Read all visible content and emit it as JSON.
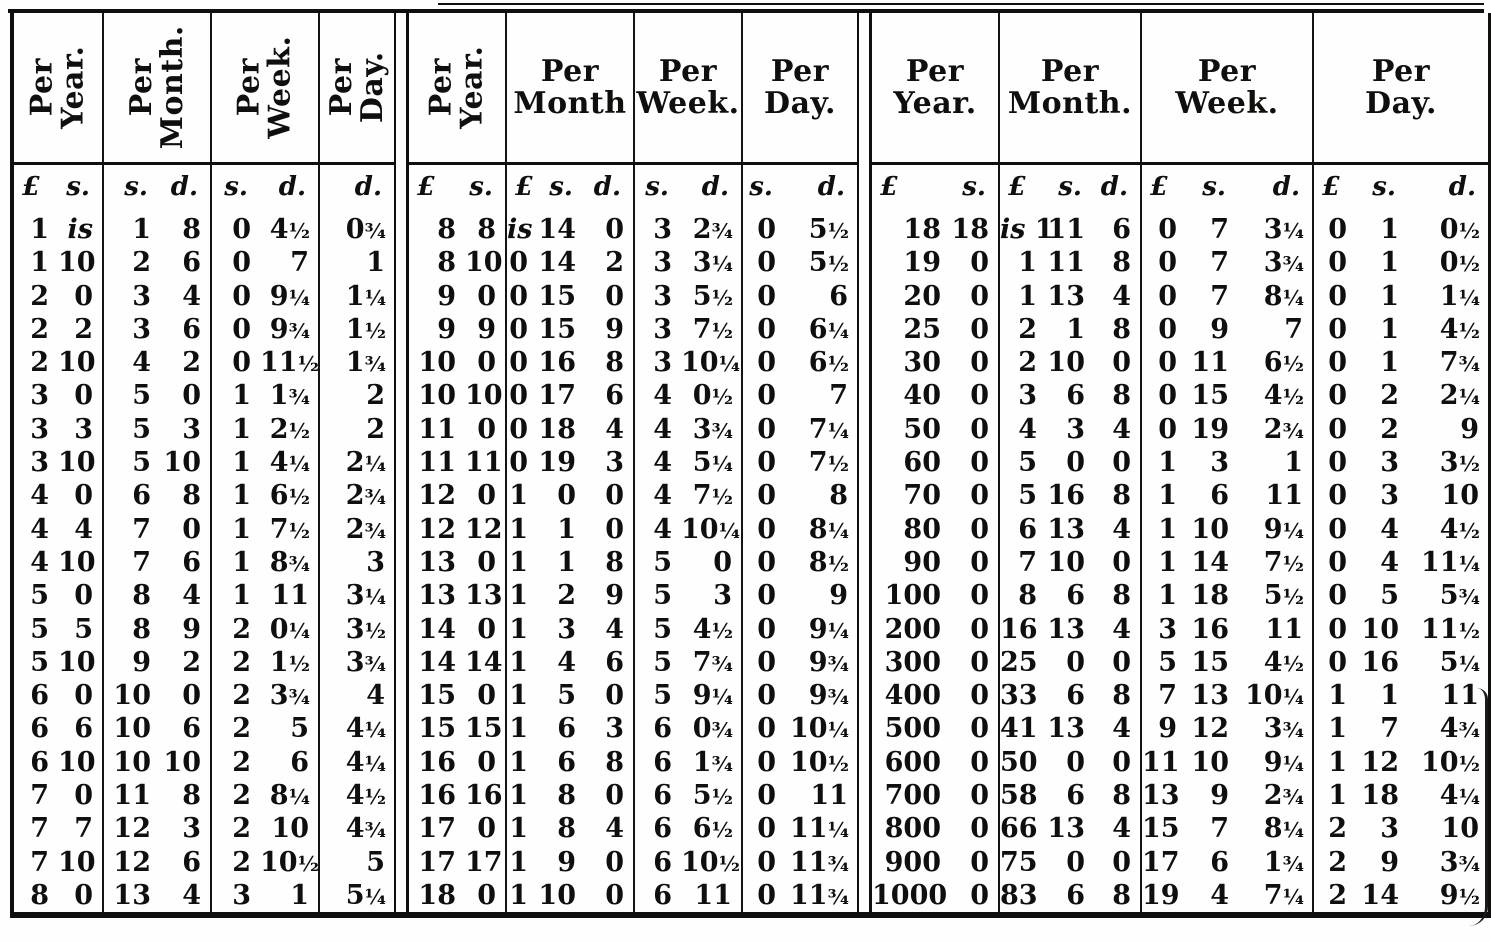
{
  "document_type": "scanned ready-reckoner wage conversion table",
  "colors": {
    "ink": "#100f0d",
    "paper": "#fefefe"
  },
  "first_row_word": "is",
  "table": {
    "sections": [
      {
        "name": "section-pounds-1-to-8",
        "groups": [
          {
            "label_lines": [
              "Per",
              "Year."
            ],
            "vertical": true,
            "units": [
              "£",
              "s."
            ]
          },
          {
            "label_lines": [
              "Per",
              "Month."
            ],
            "vertical": true,
            "units": [
              "s.",
              "d."
            ]
          },
          {
            "label_lines": [
              "Per",
              "Week."
            ],
            "vertical": true,
            "units": [
              "s.",
              "d."
            ]
          },
          {
            "label_lines": [
              "Per",
              "Day."
            ],
            "vertical": true,
            "units": [
              "d."
            ]
          }
        ],
        "rows": [
          [
            "1",
            "is",
            "1",
            "8",
            "0",
            "4½",
            "0¾"
          ],
          [
            "1",
            "10",
            "2",
            "6",
            "0",
            "7",
            "1"
          ],
          [
            "2",
            "0",
            "3",
            "4",
            "0",
            "9¼",
            "1¼"
          ],
          [
            "2",
            "2",
            "3",
            "6",
            "0",
            "9¾",
            "1½"
          ],
          [
            "2",
            "10",
            "4",
            "2",
            "0",
            "11½",
            "1¾"
          ],
          [
            "3",
            "0",
            "5",
            "0",
            "1",
            "1¾",
            "2"
          ],
          [
            "3",
            "3",
            "5",
            "3",
            "1",
            "2½",
            "2"
          ],
          [
            "3",
            "10",
            "5",
            "10",
            "1",
            "4¼",
            "2¼"
          ],
          [
            "4",
            "0",
            "6",
            "8",
            "1",
            "6½",
            "2¾"
          ],
          [
            "4",
            "4",
            "7",
            "0",
            "1",
            "7½",
            "2¾"
          ],
          [
            "4",
            "10",
            "7",
            "6",
            "1",
            "8¾",
            "3"
          ],
          [
            "5",
            "0",
            "8",
            "4",
            "1",
            "11",
            "3¼"
          ],
          [
            "5",
            "5",
            "8",
            "9",
            "2",
            "0¼",
            "3½"
          ],
          [
            "5",
            "10",
            "9",
            "2",
            "2",
            "1½",
            "3¾"
          ],
          [
            "6",
            "0",
            "10",
            "0",
            "2",
            "3¾",
            "4"
          ],
          [
            "6",
            "6",
            "10",
            "6",
            "2",
            "5",
            "4¼"
          ],
          [
            "6",
            "10",
            "10",
            "10",
            "2",
            "6",
            "4¼"
          ],
          [
            "7",
            "0",
            "11",
            "8",
            "2",
            "8¼",
            "4½"
          ],
          [
            "7",
            "7",
            "12",
            "3",
            "2",
            "10",
            "4¾"
          ],
          [
            "7",
            "10",
            "12",
            "6",
            "2",
            "10½",
            "5"
          ],
          [
            "8",
            "0",
            "13",
            "4",
            "3",
            "1",
            "5¼"
          ]
        ]
      },
      {
        "name": "section-pounds-8-to-18",
        "groups": [
          {
            "label_lines": [
              "Per",
              "Year."
            ],
            "vertical": true,
            "units": [
              "£",
              "s."
            ]
          },
          {
            "label_lines": [
              "Per",
              "Month"
            ],
            "vertical": false,
            "units": [
              "£",
              "s.",
              "d."
            ]
          },
          {
            "label_lines": [
              "Per",
              "Week."
            ],
            "vertical": false,
            "units": [
              "s.",
              "d."
            ]
          },
          {
            "label_lines": [
              "Per",
              "Day."
            ],
            "vertical": false,
            "units": [
              "s.",
              "d."
            ]
          }
        ],
        "rows": [
          [
            "8",
            "8",
            "is",
            "14",
            "0",
            "3",
            "2¾",
            "0",
            "5½"
          ],
          [
            "8",
            "10",
            "0",
            "14",
            "2",
            "3",
            "3¼",
            "0",
            "5½"
          ],
          [
            "9",
            "0",
            "0",
            "15",
            "0",
            "3",
            "5½",
            "0",
            "6"
          ],
          [
            "9",
            "9",
            "0",
            "15",
            "9",
            "3",
            "7½",
            "0",
            "6¼"
          ],
          [
            "10",
            "0",
            "0",
            "16",
            "8",
            "3",
            "10¼",
            "0",
            "6½"
          ],
          [
            "10",
            "10",
            "0",
            "17",
            "6",
            "4",
            "0½",
            "0",
            "7"
          ],
          [
            "11",
            "0",
            "0",
            "18",
            "4",
            "4",
            "3¾",
            "0",
            "7¼"
          ],
          [
            "11",
            "11",
            "0",
            "19",
            "3",
            "4",
            "5¼",
            "0",
            "7½"
          ],
          [
            "12",
            "0",
            "1",
            "0",
            "0",
            "4",
            "7½",
            "0",
            "8"
          ],
          [
            "12",
            "12",
            "1",
            "1",
            "0",
            "4",
            "10¼",
            "0",
            "8¼"
          ],
          [
            "13",
            "0",
            "1",
            "1",
            "8",
            "5",
            "0",
            "0",
            "8½"
          ],
          [
            "13",
            "13",
            "1",
            "2",
            "9",
            "5",
            "3",
            "0",
            "9"
          ],
          [
            "14",
            "0",
            "1",
            "3",
            "4",
            "5",
            "4½",
            "0",
            "9¼"
          ],
          [
            "14",
            "14",
            "1",
            "4",
            "6",
            "5",
            "7¾",
            "0",
            "9¾"
          ],
          [
            "15",
            "0",
            "1",
            "5",
            "0",
            "5",
            "9¼",
            "0",
            "9¾"
          ],
          [
            "15",
            "15",
            "1",
            "6",
            "3",
            "6",
            "0¾",
            "0",
            "10¼"
          ],
          [
            "16",
            "0",
            "1",
            "6",
            "8",
            "6",
            "1¾",
            "0",
            "10½"
          ],
          [
            "16",
            "16",
            "1",
            "8",
            "0",
            "6",
            "5½",
            "0",
            "11"
          ],
          [
            "17",
            "0",
            "1",
            "8",
            "4",
            "6",
            "6½",
            "0",
            "11¼"
          ],
          [
            "17",
            "17",
            "1",
            "9",
            "0",
            "6",
            "10½",
            "0",
            "11¾"
          ],
          [
            "18",
            "0",
            "1",
            "10",
            "0",
            "6",
            "11",
            "0",
            "11¾"
          ]
        ]
      },
      {
        "name": "section-pounds-18-to-1000",
        "groups": [
          {
            "label_lines": [
              "Per",
              "Year."
            ],
            "vertical": false,
            "units": [
              "£",
              "s."
            ]
          },
          {
            "label_lines": [
              "Per",
              "Month."
            ],
            "vertical": false,
            "units": [
              "£",
              "s.",
              "d."
            ]
          },
          {
            "label_lines": [
              "Per",
              "Week."
            ],
            "vertical": false,
            "units": [
              "£",
              "s.",
              "d."
            ]
          },
          {
            "label_lines": [
              "Per",
              "Day."
            ],
            "vertical": false,
            "units": [
              "£",
              "s.",
              "d."
            ]
          }
        ],
        "rows": [
          [
            "18",
            "18",
            "is 1",
            "11",
            "6",
            "0",
            "7",
            "3¼",
            "0",
            "1",
            "0½"
          ],
          [
            "19",
            "0",
            "1",
            "11",
            "8",
            "0",
            "7",
            "3¾",
            "0",
            "1",
            "0½"
          ],
          [
            "20",
            "0",
            "1",
            "13",
            "4",
            "0",
            "7",
            "8¼",
            "0",
            "1",
            "1¼"
          ],
          [
            "25",
            "0",
            "2",
            "1",
            "8",
            "0",
            "9",
            "7",
            "0",
            "1",
            "4½"
          ],
          [
            "30",
            "0",
            "2",
            "10",
            "0",
            "0",
            "11",
            "6½",
            "0",
            "1",
            "7¾"
          ],
          [
            "40",
            "0",
            "3",
            "6",
            "8",
            "0",
            "15",
            "4½",
            "0",
            "2",
            "2¼"
          ],
          [
            "50",
            "0",
            "4",
            "3",
            "4",
            "0",
            "19",
            "2¾",
            "0",
            "2",
            "9"
          ],
          [
            "60",
            "0",
            "5",
            "0",
            "0",
            "1",
            "3",
            "1",
            "0",
            "3",
            "3½"
          ],
          [
            "70",
            "0",
            "5",
            "16",
            "8",
            "1",
            "6",
            "11",
            "0",
            "3",
            "10"
          ],
          [
            "80",
            "0",
            "6",
            "13",
            "4",
            "1",
            "10",
            "9¼",
            "0",
            "4",
            "4½"
          ],
          [
            "90",
            "0",
            "7",
            "10",
            "0",
            "1",
            "14",
            "7½",
            "0",
            "4",
            "11¼"
          ],
          [
            "100",
            "0",
            "8",
            "6",
            "8",
            "1",
            "18",
            "5½",
            "0",
            "5",
            "5¾"
          ],
          [
            "200",
            "0",
            "16",
            "13",
            "4",
            "3",
            "16",
            "11",
            "0",
            "10",
            "11½"
          ],
          [
            "300",
            "0",
            "25",
            "0",
            "0",
            "5",
            "15",
            "4½",
            "0",
            "16",
            "5¼"
          ],
          [
            "400",
            "0",
            "33",
            "6",
            "8",
            "7",
            "13",
            "10¼",
            "1",
            "1",
            "11"
          ],
          [
            "500",
            "0",
            "41",
            "13",
            "4",
            "9",
            "12",
            "3¾",
            "1",
            "7",
            "4¾"
          ],
          [
            "600",
            "0",
            "50",
            "0",
            "0",
            "11",
            "10",
            "9¼",
            "1",
            "12",
            "10½"
          ],
          [
            "700",
            "0",
            "58",
            "6",
            "8",
            "13",
            "9",
            "2¾",
            "1",
            "18",
            "4¼"
          ],
          [
            "800",
            "0",
            "66",
            "13",
            "4",
            "15",
            "7",
            "8¼",
            "2",
            "3",
            "10"
          ],
          [
            "900",
            "0",
            "75",
            "0",
            "0",
            "17",
            "6",
            "1¾",
            "2",
            "9",
            "3¾"
          ],
          [
            "1000",
            "0",
            "83",
            "6",
            "8",
            "19",
            "4",
            "7¼",
            "2",
            "14",
            "9½"
          ]
        ]
      }
    ]
  }
}
